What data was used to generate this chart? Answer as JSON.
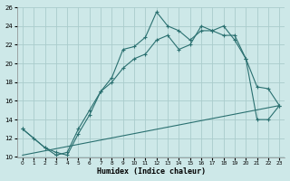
{
  "xlabel": "Humidex (Indice chaleur)",
  "background_color": "#cde8e8",
  "grid_color": "#aacccc",
  "line_color": "#2a7070",
  "xlim": [
    -0.5,
    23.5
  ],
  "ylim": [
    10,
    26
  ],
  "xticks": [
    0,
    1,
    2,
    3,
    4,
    5,
    6,
    7,
    8,
    9,
    10,
    11,
    12,
    13,
    14,
    15,
    16,
    17,
    18,
    19,
    20,
    21,
    22,
    23
  ],
  "yticks": [
    10,
    12,
    14,
    16,
    18,
    20,
    22,
    24,
    26
  ],
  "line1_x": [
    0,
    1,
    2,
    3,
    4,
    5,
    6,
    7,
    8,
    9,
    10,
    11,
    12,
    13,
    14,
    15,
    16,
    17,
    18,
    19,
    20,
    21,
    22,
    23
  ],
  "line1_y": [
    13,
    12,
    11,
    10.5,
    10.2,
    12.5,
    14.5,
    17,
    18.5,
    21.5,
    21.8,
    22.8,
    25.5,
    24,
    23.5,
    22.5,
    23.5,
    23.5,
    24,
    22.5,
    20.5,
    17.5,
    17.3,
    15.5
  ],
  "line2_x": [
    0,
    2,
    3,
    4,
    5,
    6,
    7,
    8,
    9,
    10,
    11,
    12,
    13,
    14,
    15,
    16,
    17,
    18,
    19,
    20,
    21,
    22,
    23
  ],
  "line2_y": [
    13,
    11,
    10.2,
    10.5,
    13,
    15,
    17,
    18,
    19.5,
    20.5,
    21,
    22.5,
    23,
    21.5,
    22,
    24,
    23.5,
    23,
    23,
    20.5,
    14,
    14,
    15.5
  ],
  "line3_x": [
    0,
    23
  ],
  "line3_y": [
    10.2,
    15.5
  ]
}
